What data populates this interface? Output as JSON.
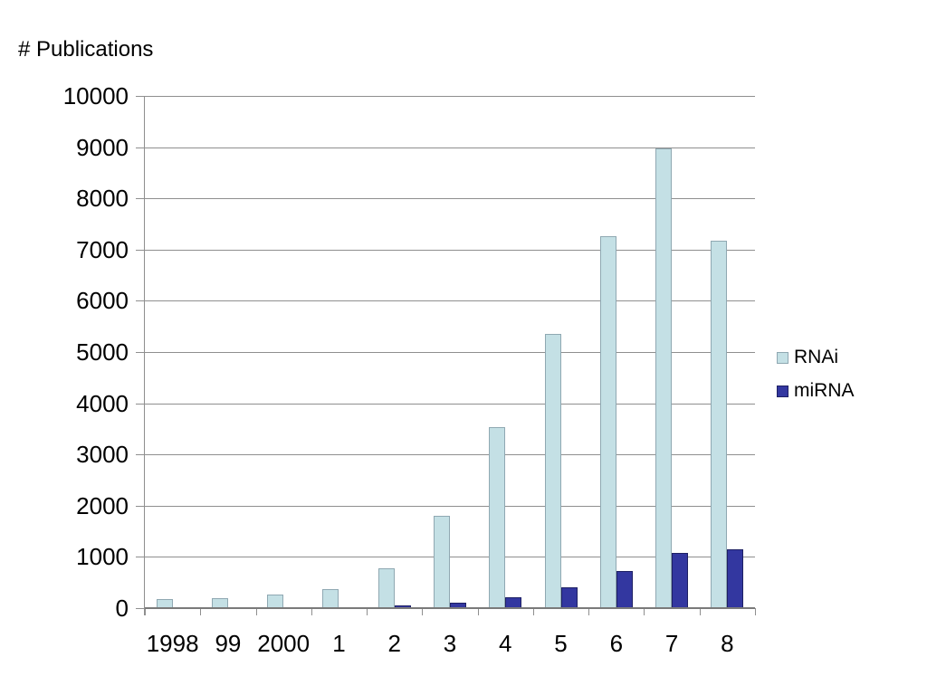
{
  "chart_data": {
    "type": "bar",
    "title": "# Publications",
    "xlabel": "",
    "ylabel": "",
    "categories": [
      "1998",
      "99",
      "2000",
      "1",
      "2",
      "3",
      "4",
      "5",
      "6",
      "7",
      "8"
    ],
    "series": [
      {
        "name": "RNAi",
        "color": "#c4e0e5",
        "border_color": "#8fa8b2",
        "values": [
          170,
          200,
          260,
          370,
          780,
          1800,
          3530,
          5350,
          7270,
          8970,
          7170
        ]
      },
      {
        "name": "miRNA",
        "color": "#3337a0",
        "border_color": "#1e2064",
        "values": [
          0,
          0,
          0,
          0,
          50,
          100,
          220,
          410,
          720,
          1080,
          1150
        ]
      }
    ],
    "ylim": [
      0,
      10000
    ],
    "ytick_step": 1000,
    "ytick_labels": [
      "0",
      "1000",
      "2000",
      "3000",
      "4000",
      "5000",
      "6000",
      "7000",
      "8000",
      "9000",
      "10000"
    ],
    "grid": true,
    "legend_position": "right"
  },
  "colors": {
    "background": "#ffffff",
    "gridline": "#8f8f8f",
    "axis": "#7a7a7a",
    "tick": "#8f8f8f",
    "text": "#000000"
  }
}
